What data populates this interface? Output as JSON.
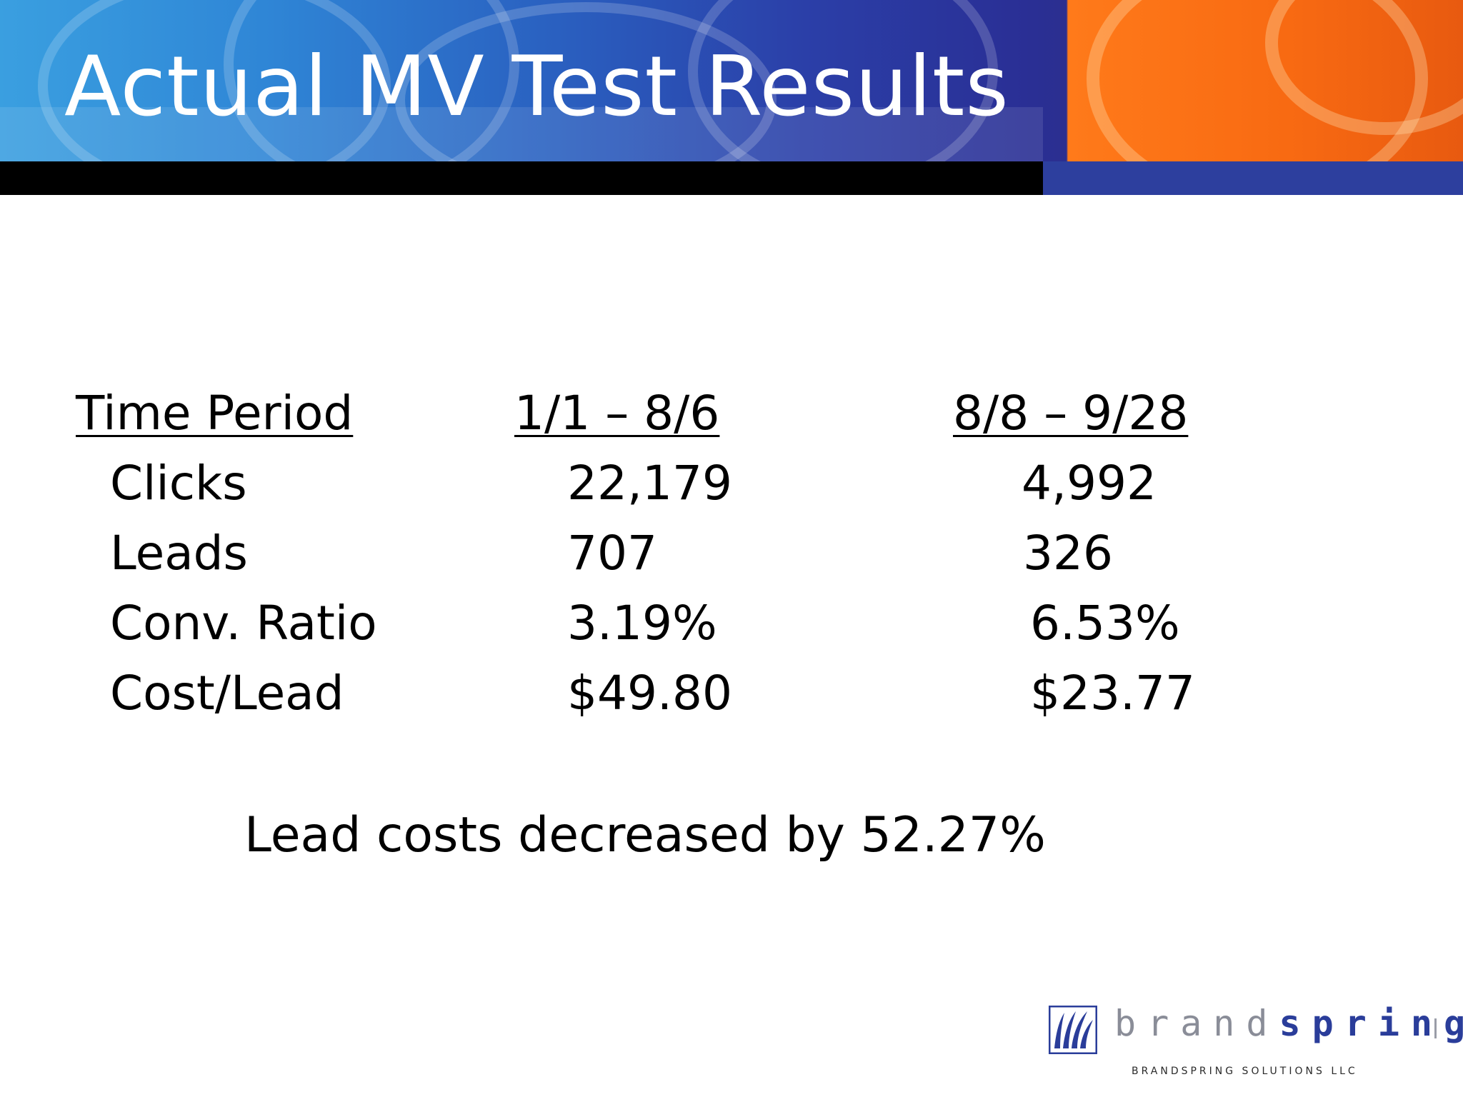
{
  "slide": {
    "title": "Actual MV Test Results"
  },
  "table": {
    "headers": [
      "Time Period",
      "1/1 – 8/6",
      "8/8 – 9/28"
    ],
    "rows": [
      {
        "label": "Clicks",
        "period1": "22,179",
        "period2": "4,992"
      },
      {
        "label": "Leads",
        "period1": "707",
        "period2": "326"
      },
      {
        "label": "Conv. Ratio",
        "period1": "3.19%",
        "period2": "6.53%"
      },
      {
        "label": "Cost/Lead",
        "period1": "$49.80",
        "period2": "$23.77"
      }
    ]
  },
  "summary": "Lead costs decreased by 52.27%",
  "logo": {
    "word_part1": "brand",
    "word_part2": "spring",
    "subtitle": "BRANDSPRING SOLUTIONS LLC"
  },
  "colors": {
    "banner_blue": "#2a4fb8",
    "banner_orange": "#f86a12",
    "logo_blue": "#2a3d9a"
  }
}
